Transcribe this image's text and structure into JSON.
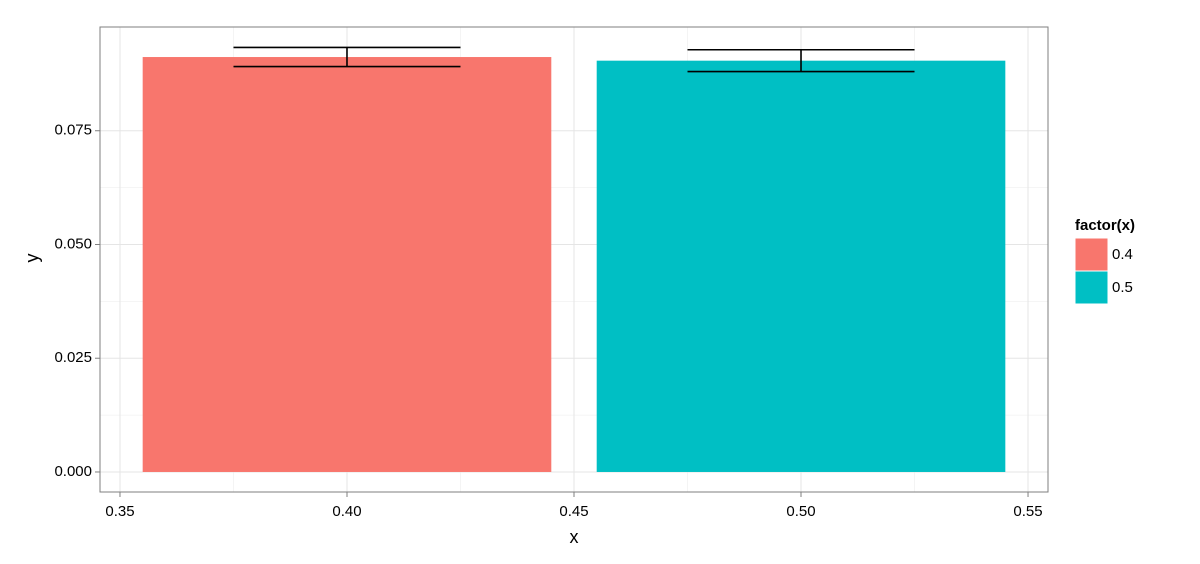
{
  "chart_data": {
    "type": "bar",
    "x_label": "x",
    "y_label": "y",
    "x": [
      0.4,
      0.5
    ],
    "values": [
      0.0912,
      0.0904
    ],
    "errors": [
      0.0021,
      0.0024
    ],
    "colors": [
      "#f8766d",
      "#00bfc4"
    ],
    "bar_width": 0.09,
    "errorbar_width": 0.05,
    "legend": {
      "title": "factor(x)",
      "labels": [
        "0.4",
        "0.5"
      ],
      "position": "right"
    },
    "xlim": [
      0.3456,
      0.5544
    ],
    "xticks": [
      0.35,
      {
        "value": 0.4,
        "label": "0.40"
      },
      0.45,
      {
        "value": 0.5,
        "label": "0.50"
      },
      0.55
    ],
    "ylim": [
      -0.0044,
      0.0978
    ],
    "yticks": [
      {
        "value": 0,
        "label": "0.000"
      },
      0.025,
      {
        "value": 0.05,
        "label": "0.050"
      },
      0.075
    ],
    "grid": true
  }
}
